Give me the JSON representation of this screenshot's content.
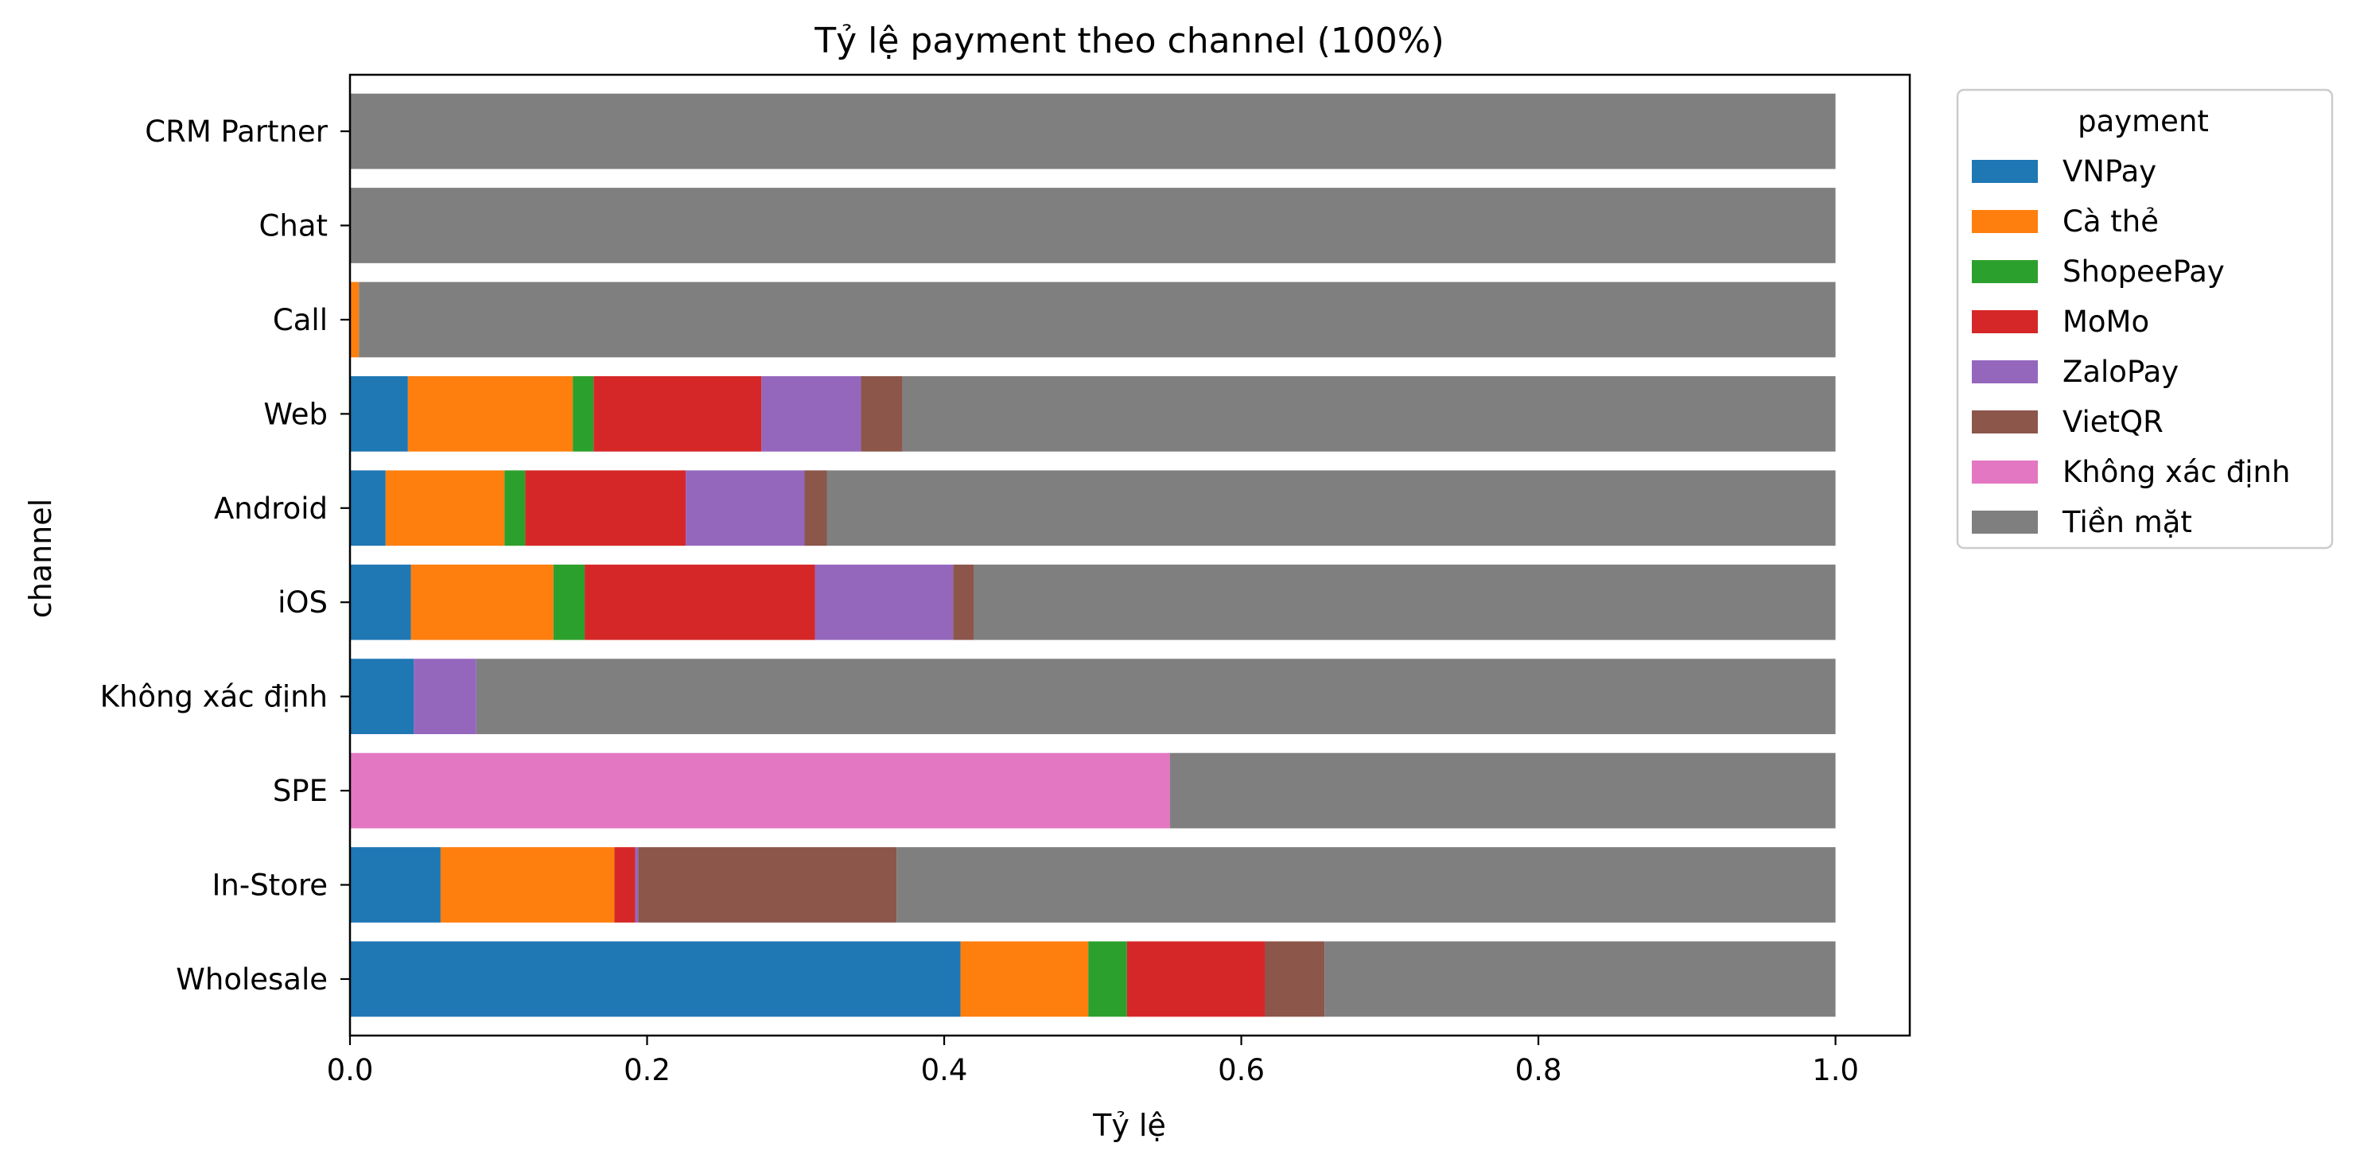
{
  "chart_data": {
    "type": "bar",
    "orientation": "horizontal",
    "stacked": true,
    "title": "Tỷ lệ payment theo channel (100%)",
    "xlabel": "Tỷ lệ",
    "ylabel": "channel",
    "xlim": [
      0.0,
      1.05
    ],
    "xticks": [
      0.0,
      0.2,
      0.4,
      0.6,
      0.8,
      1.0
    ],
    "xtick_labels": [
      "0.0",
      "0.2",
      "0.4",
      "0.6",
      "0.8",
      "1.0"
    ],
    "grid": false,
    "legend_title": "payment",
    "legend_position": "outside-top-right",
    "categories": [
      "Wholesale",
      "In-Store",
      "SPE",
      "Không xác định",
      "iOS",
      "Android",
      "Web",
      "Call",
      "Chat",
      "CRM Partner"
    ],
    "series": [
      {
        "name": "VNPay",
        "color": "#1f77b4",
        "values": [
          0.411,
          0.061,
          0.0,
          0.043,
          0.041,
          0.024,
          0.039,
          0.0,
          0.0,
          0.0
        ]
      },
      {
        "name": "Cà thẻ",
        "color": "#ff7f0e",
        "values": [
          0.086,
          0.117,
          0.0,
          0.0,
          0.096,
          0.08,
          0.111,
          0.006,
          0.0,
          0.0
        ]
      },
      {
        "name": "ShopeePay",
        "color": "#2ca02c",
        "values": [
          0.026,
          0.0,
          0.0,
          0.0,
          0.021,
          0.014,
          0.014,
          0.0,
          0.0,
          0.0
        ]
      },
      {
        "name": "MoMo",
        "color": "#d62728",
        "values": [
          0.093,
          0.014,
          0.0,
          0.0,
          0.155,
          0.108,
          0.113,
          0.0,
          0.0,
          0.0
        ]
      },
      {
        "name": "ZaloPay",
        "color": "#9467bd",
        "values": [
          0.0,
          0.002,
          0.0,
          0.042,
          0.093,
          0.08,
          0.067,
          0.0,
          0.0,
          0.0
        ]
      },
      {
        "name": "VietQR",
        "color": "#8c564b",
        "values": [
          0.04,
          0.174,
          0.0,
          0.0,
          0.014,
          0.015,
          0.028,
          0.0,
          0.0,
          0.0
        ]
      },
      {
        "name": "Không xác định",
        "color": "#e377c2",
        "values": [
          0.0,
          0.0,
          0.552,
          0.0,
          0.0,
          0.0,
          0.0,
          0.0,
          0.0,
          0.0
        ]
      },
      {
        "name": "Tiền mặt",
        "color": "#7f7f7f",
        "values": [
          0.344,
          0.632,
          0.448,
          0.915,
          0.58,
          0.679,
          0.628,
          0.994,
          1.0,
          1.0
        ]
      }
    ]
  }
}
